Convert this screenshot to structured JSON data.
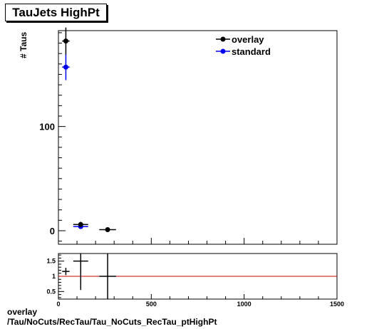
{
  "title": "TauJets HighPt",
  "colors": {
    "overlay": "#000000",
    "standard": "#0000ee",
    "ratio_line": "#cc0000"
  },
  "caption": {
    "line1": "overlay",
    "line2": "/Tau/NoCuts/RecTau/Tau_NoCuts_RecTau_ptHighPt"
  },
  "chart_data": [
    {
      "type": "scatter",
      "title": "TauJets HighPt",
      "xlabel": "",
      "ylabel": "# Taus",
      "xlim": [
        0,
        1500
      ],
      "ylim": [
        -13,
        192
      ],
      "yticks": [
        0,
        100
      ],
      "ytick_labels": [
        "0",
        "100"
      ],
      "legend": {
        "placement": "top-right",
        "entries": [
          "overlay",
          "standard"
        ]
      },
      "series": [
        {
          "name": "overlay",
          "color": "#000000",
          "points": [
            {
              "x": 40,
              "y": 182,
              "xerr": 20,
              "yerr": 13
            },
            {
              "x": 120,
              "y": 6,
              "xerr": 40,
              "yerr": 2.5
            },
            {
              "x": 265,
              "y": 1,
              "xerr": 45,
              "yerr": 1
            }
          ]
        },
        {
          "name": "standard",
          "color": "#0000ee",
          "points": [
            {
              "x": 40,
              "y": 157,
              "xerr": 20,
              "yerr": 12.5
            },
            {
              "x": 120,
              "y": 4,
              "xerr": 40,
              "yerr": 2
            }
          ]
        }
      ]
    },
    {
      "type": "scatter",
      "xlabel": "",
      "ylabel": "",
      "xlim": [
        0,
        1500
      ],
      "ylim": [
        0.25,
        1.75
      ],
      "xticks": [
        0,
        500,
        1000,
        1500
      ],
      "xtick_labels": [
        "0",
        "500",
        "1000",
        "1500"
      ],
      "yticks": [
        0.5,
        1,
        1.5
      ],
      "ytick_labels": [
        "0.5",
        "1",
        "1.5"
      ],
      "reference_line": 1,
      "series": [
        {
          "name": "",
          "color": "#000000",
          "points": [
            {
              "x": 40,
              "y": 1.16,
              "xerr": 20,
              "yerr": 0.12
            },
            {
              "x": 120,
              "y": 1.5,
              "xerr": 40,
              "yerr": 0.95
            },
            {
              "x": 265,
              "y": 1.0,
              "xerr": 45,
              "yerr": 1.3
            }
          ]
        }
      ]
    }
  ]
}
